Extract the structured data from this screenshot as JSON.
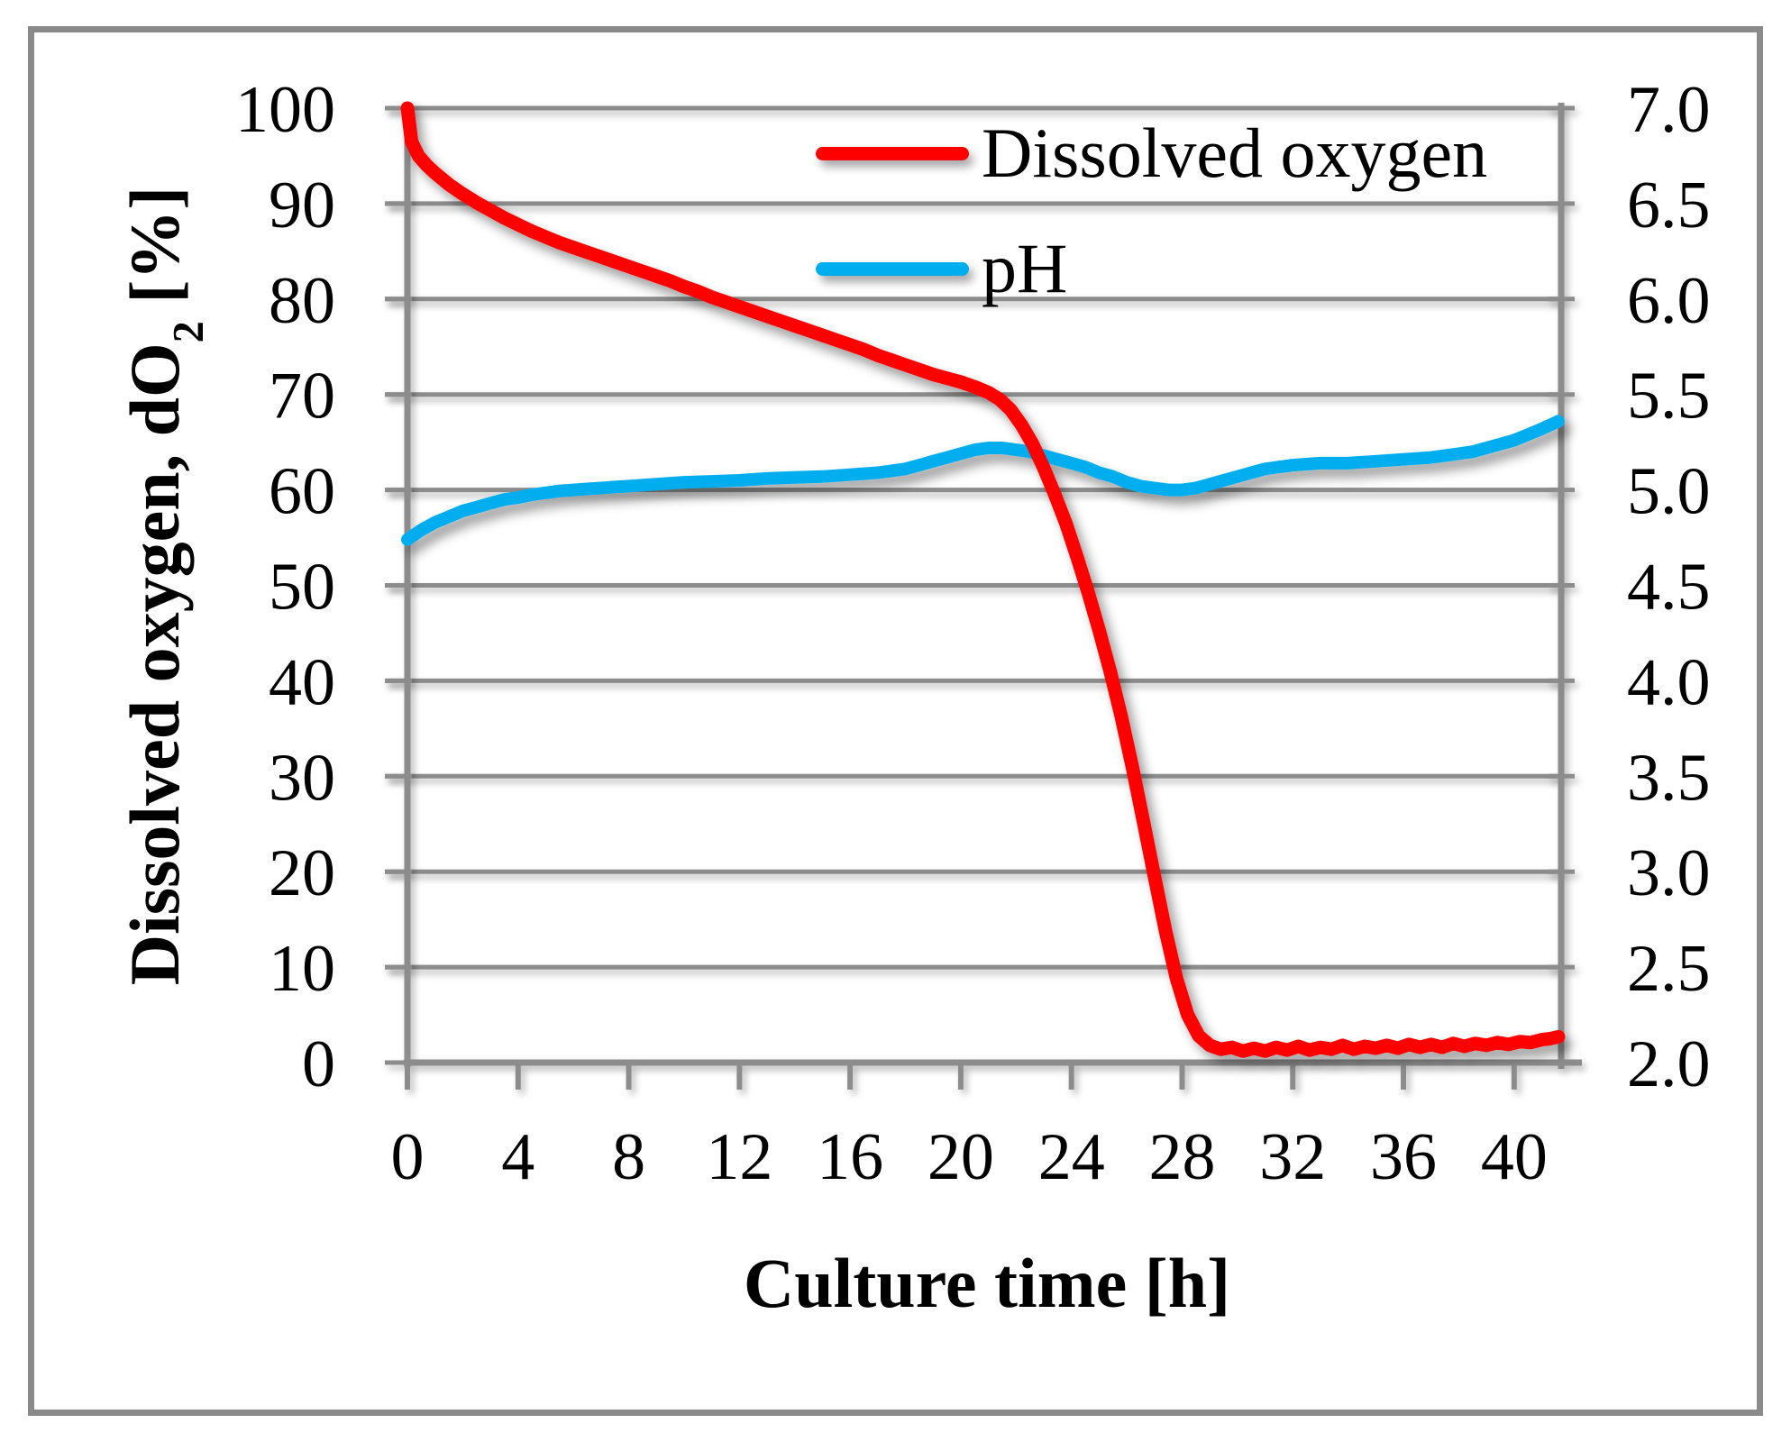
{
  "chart_data": {
    "type": "line",
    "title": "",
    "xlabel": "Culture time [h]",
    "ylabel_left": {
      "main": "Dissolved oxygen, dO",
      "sub": "2",
      "unit": " [%]"
    },
    "xlim": [
      0,
      41.7
    ],
    "ylim_left": [
      0,
      100
    ],
    "ylim_right": [
      2.0,
      7.0
    ],
    "x_tick_labels": [
      "0",
      "4",
      "8",
      "12",
      "16",
      "20",
      "24",
      "28",
      "32",
      "36",
      "40"
    ],
    "y_left_tick_labels": [
      "100",
      "90",
      "80",
      "70",
      "60",
      "50",
      "40",
      "30",
      "20",
      "10",
      "0"
    ],
    "y_right_tick_labels": [
      "7.0",
      "6.5",
      "6.0",
      "5.5",
      "5.0",
      "4.5",
      "4.0",
      "3.5",
      "3.0",
      "2.5",
      "2.0"
    ],
    "grid": "horizontal",
    "legend_position": "top-center-inside",
    "grid_color": "#8C8C8C",
    "axis_color": "#8C8C8C",
    "text_color": "#000000",
    "series": [
      {
        "name": "Dissolved oxygen",
        "axis": "left",
        "color": "#FE0000",
        "points": [
          [
            0,
            100
          ],
          [
            0.15,
            96.5
          ],
          [
            0.4,
            95
          ],
          [
            0.7,
            94
          ],
          [
            1,
            93.2
          ],
          [
            1.5,
            92
          ],
          [
            2,
            91
          ],
          [
            2.5,
            90.1
          ],
          [
            3,
            89.3
          ],
          [
            3.5,
            88.5
          ],
          [
            4,
            87.8
          ],
          [
            4.5,
            87.1
          ],
          [
            5,
            86.5
          ],
          [
            5.5,
            85.9
          ],
          [
            6,
            85.4
          ],
          [
            6.5,
            84.9
          ],
          [
            7,
            84.4
          ],
          [
            7.5,
            83.9
          ],
          [
            8,
            83.4
          ],
          [
            8.5,
            82.9
          ],
          [
            9,
            82.4
          ],
          [
            9.5,
            81.9
          ],
          [
            10,
            81.3
          ],
          [
            10.5,
            80.8
          ],
          [
            11,
            80.2
          ],
          [
            11.5,
            79.7
          ],
          [
            12,
            79.2
          ],
          [
            12.5,
            78.7
          ],
          [
            13,
            78.2
          ],
          [
            13.5,
            77.7
          ],
          [
            14,
            77.2
          ],
          [
            14.5,
            76.7
          ],
          [
            15,
            76.2
          ],
          [
            15.5,
            75.7
          ],
          [
            16,
            75.2
          ],
          [
            16.5,
            74.7
          ],
          [
            17,
            74.1
          ],
          [
            17.5,
            73.6
          ],
          [
            18,
            73.1
          ],
          [
            18.5,
            72.6
          ],
          [
            19,
            72.1
          ],
          [
            19.5,
            71.7
          ],
          [
            20,
            71.3
          ],
          [
            20.5,
            70.8
          ],
          [
            21,
            70.2
          ],
          [
            21.4,
            69.5
          ],
          [
            21.8,
            68.4
          ],
          [
            22.2,
            66.8
          ],
          [
            22.6,
            64.8
          ],
          [
            23,
            62.3
          ],
          [
            23.4,
            59.5
          ],
          [
            23.8,
            56.5
          ],
          [
            24.2,
            53
          ],
          [
            24.6,
            49.3
          ],
          [
            25,
            45.3
          ],
          [
            25.4,
            41
          ],
          [
            25.8,
            36.3
          ],
          [
            26.2,
            31
          ],
          [
            26.6,
            25.3
          ],
          [
            27,
            19.5
          ],
          [
            27.4,
            13.8
          ],
          [
            27.8,
            8.8
          ],
          [
            28.2,
            5
          ],
          [
            28.6,
            2.8
          ],
          [
            29,
            1.8
          ],
          [
            29.4,
            1.4
          ],
          [
            29.8,
            1.6
          ],
          [
            30.2,
            1.2
          ],
          [
            30.6,
            1.5
          ],
          [
            31,
            1.2
          ],
          [
            31.4,
            1.6
          ],
          [
            31.8,
            1.3
          ],
          [
            32.2,
            1.7
          ],
          [
            32.6,
            1.3
          ],
          [
            33,
            1.6
          ],
          [
            33.4,
            1.4
          ],
          [
            33.8,
            1.8
          ],
          [
            34.2,
            1.4
          ],
          [
            34.6,
            1.7
          ],
          [
            35,
            1.5
          ],
          [
            35.4,
            1.8
          ],
          [
            35.8,
            1.5
          ],
          [
            36.2,
            1.9
          ],
          [
            36.6,
            1.6
          ],
          [
            37,
            1.9
          ],
          [
            37.4,
            1.6
          ],
          [
            37.8,
            2
          ],
          [
            38.2,
            1.7
          ],
          [
            38.6,
            2
          ],
          [
            39,
            1.8
          ],
          [
            39.4,
            2.1
          ],
          [
            39.8,
            1.9
          ],
          [
            40.2,
            2.2
          ],
          [
            40.6,
            2.1
          ],
          [
            41,
            2.4
          ],
          [
            41.3,
            2.5
          ],
          [
            41.6,
            2.7
          ]
        ]
      },
      {
        "name": "pH",
        "axis": "right",
        "color": "#00AEEF",
        "points": [
          [
            0,
            4.74
          ],
          [
            0.5,
            4.79
          ],
          [
            1,
            4.83
          ],
          [
            1.5,
            4.86
          ],
          [
            2,
            4.89
          ],
          [
            2.5,
            4.91
          ],
          [
            3,
            4.93
          ],
          [
            3.5,
            4.95
          ],
          [
            4,
            4.96
          ],
          [
            4.5,
            4.975
          ],
          [
            5,
            4.985
          ],
          [
            5.5,
            4.995
          ],
          [
            6,
            5.0
          ],
          [
            6.5,
            5.005
          ],
          [
            7,
            5.01
          ],
          [
            7.5,
            5.015
          ],
          [
            8,
            5.02
          ],
          [
            9,
            5.03
          ],
          [
            10,
            5.04
          ],
          [
            11,
            5.045
          ],
          [
            12,
            5.05
          ],
          [
            13,
            5.06
          ],
          [
            14,
            5.065
          ],
          [
            15,
            5.07
          ],
          [
            16,
            5.08
          ],
          [
            17,
            5.09
          ],
          [
            17.5,
            5.1
          ],
          [
            18,
            5.11
          ],
          [
            18.5,
            5.13
          ],
          [
            19,
            5.15
          ],
          [
            19.5,
            5.17
          ],
          [
            20,
            5.19
          ],
          [
            20.5,
            5.21
          ],
          [
            21,
            5.22
          ],
          [
            21.5,
            5.22
          ],
          [
            22,
            5.21
          ],
          [
            22.5,
            5.2
          ],
          [
            23,
            5.18
          ],
          [
            23.5,
            5.16
          ],
          [
            24,
            5.14
          ],
          [
            24.5,
            5.12
          ],
          [
            25,
            5.09
          ],
          [
            25.5,
            5.07
          ],
          [
            26,
            5.04
          ],
          [
            26.5,
            5.02
          ],
          [
            27,
            5.01
          ],
          [
            27.5,
            5.0
          ],
          [
            28,
            5.0
          ],
          [
            28.5,
            5.01
          ],
          [
            29,
            5.03
          ],
          [
            29.5,
            5.05
          ],
          [
            30,
            5.07
          ],
          [
            30.5,
            5.09
          ],
          [
            31,
            5.11
          ],
          [
            31.5,
            5.12
          ],
          [
            32,
            5.13
          ],
          [
            32.5,
            5.135
          ],
          [
            33,
            5.14
          ],
          [
            34,
            5.14
          ],
          [
            35,
            5.15
          ],
          [
            36,
            5.16
          ],
          [
            37,
            5.17
          ],
          [
            38,
            5.19
          ],
          [
            38.5,
            5.2
          ],
          [
            39,
            5.22
          ],
          [
            39.5,
            5.24
          ],
          [
            40,
            5.26
          ],
          [
            40.5,
            5.29
          ],
          [
            41,
            5.32
          ],
          [
            41.3,
            5.34
          ],
          [
            41.6,
            5.36
          ]
        ]
      }
    ]
  },
  "legend": {
    "items": [
      {
        "label": "Dissolved oxygen"
      },
      {
        "label": "pH"
      }
    ]
  }
}
